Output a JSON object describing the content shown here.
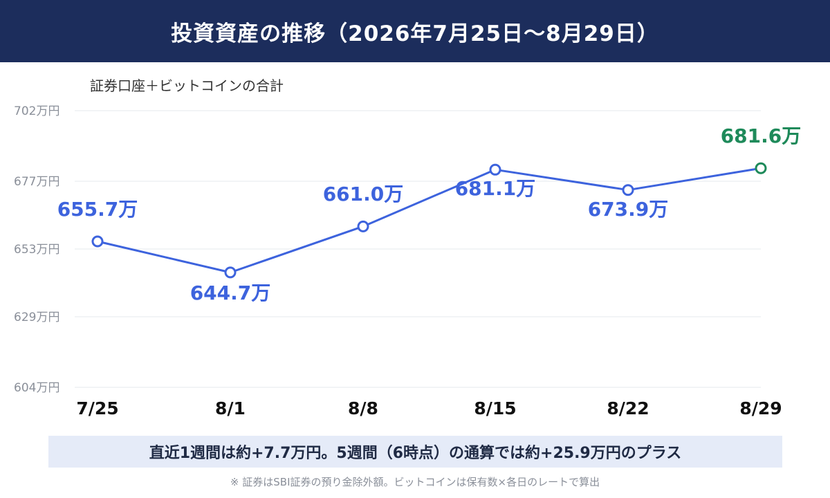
{
  "header": {
    "title": "投資資産の推移（2026年7月25日〜8月29日）"
  },
  "chart_data": {
    "type": "line",
    "title": "投資資産の推移（2026年7月25日〜8月29日）",
    "subtitle": "証券口座＋ビットコインの合計",
    "categories": [
      "7/25",
      "8/1",
      "8/8",
      "8/15",
      "8/22",
      "8/29"
    ],
    "values": [
      655.7,
      644.7,
      661.0,
      681.1,
      673.9,
      681.6
    ],
    "data_labels": [
      "655.7万",
      "644.7万",
      "661.0万",
      "681.1万",
      "673.9万",
      "681.6万"
    ],
    "yticks": [
      604,
      629,
      653,
      677,
      702
    ],
    "ytick_labels": [
      "604万円",
      "629万円",
      "653万円",
      "677万円",
      "702万円"
    ],
    "ylim": [
      604,
      702
    ],
    "grid": true,
    "colors": {
      "line": "#3d63dd",
      "last_point": "#1e8a5a",
      "grid": "#e6e8ec",
      "header": "#1c2d5c"
    }
  },
  "summary": "直近1週間は約+7.7万円。5週間（6時点）の通算では約+25.9万円のプラス",
  "footnote": "※ 証券はSBI証券の預り金除外額。ビットコインは保有数×各日のレートで算出"
}
